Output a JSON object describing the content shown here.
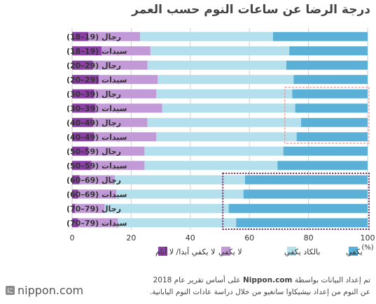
{
  "title": "درجة الرضا عن ساعات النوم حسب العمر",
  "colors": {
    "enough": "#5ab0d6",
    "barely_enough": "#b4dfec",
    "not_enough": "#c29ad8",
    "never_enough": "#8d3fa8",
    "highlight_salmon": "#f08c8c",
    "highlight_purple": "#6b2a5e"
  },
  "chart_data": {
    "type": "bar",
    "orientation": "horizontal",
    "stacked": true,
    "categories": [
      "رجال (19–18)",
      "سيدات (19–18)",
      "رجال (29–20)",
      "سيدات (29–20)",
      "رجال (39–30)",
      "سيدات (39–30)",
      "رجال (49–40)",
      "سيدات (49–40)",
      "رجال (59–50)",
      "سيدات (59–50)",
      "رجال (69–60)",
      "سيدات (69–60)",
      "رجال (79–70)",
      "سيدات (79–70)"
    ],
    "series": [
      {
        "name": "لا يكفي أبدا/ لا أنام",
        "values": [
          5.5,
          10,
          7,
          9,
          7.5,
          8,
          7,
          7.5,
          5.5,
          6.5,
          2.5,
          2,
          1,
          2
        ]
      },
      {
        "name": "لا يكفي",
        "values": [
          17.5,
          16.5,
          18.5,
          20,
          21,
          22.5,
          18.5,
          21,
          19,
          18,
          12,
          13,
          10,
          13.5
        ]
      },
      {
        "name": "بالكاد يكفي",
        "values": [
          45,
          47,
          47,
          46,
          46,
          45,
          52,
          47.5,
          47,
          45,
          44,
          43,
          42,
          40
        ]
      },
      {
        "name": "يكفي",
        "values": [
          32,
          26.5,
          27.5,
          25,
          25.5,
          24.5,
          22.5,
          24,
          28.5,
          30.5,
          41.5,
          42,
          47,
          44.5
        ]
      }
    ],
    "xlim": [
      0,
      100
    ],
    "xticks": [
      "0",
      "20",
      "40",
      "60",
      "80",
      "100"
    ],
    "xunit": "(%)",
    "grid": true,
    "legend_placement": "bottom",
    "highlights": [
      {
        "color": "salmon",
        "rows": [
          4,
          7
        ],
        "x_range": [
          72,
          100
        ]
      },
      {
        "color": "purple",
        "rows": [
          10,
          13
        ],
        "x_range": [
          51,
          100
        ]
      }
    ]
  },
  "source": {
    "line1_prefix": "تم إعداد البيانات بواسطة",
    "line1_site": "Nippon.com",
    "line1_suffix": "على أساس تقرير عام 2018",
    "line2": "عن النوم من إعداد نيشيكاوا سانغيو من خلال دراسة عادات النوم اليابانية."
  },
  "logo": {
    "text": "nippon.com",
    "seal": "に"
  }
}
